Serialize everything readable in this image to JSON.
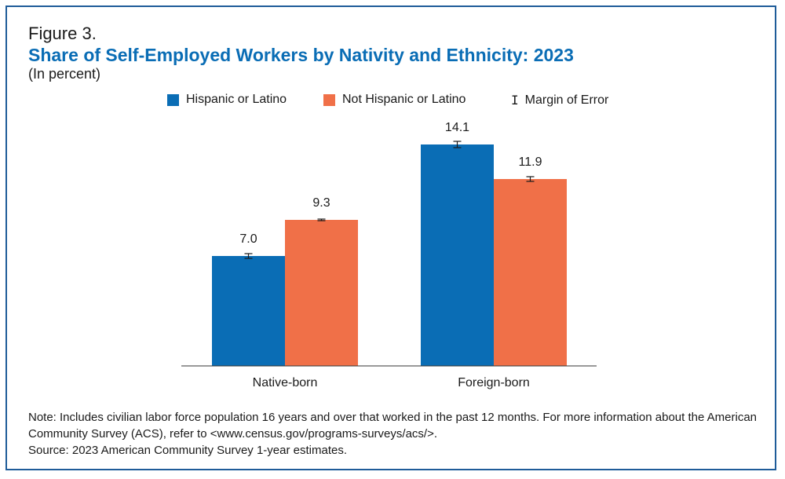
{
  "figure_label": "Figure 3.",
  "colors": {
    "hispanic": "#0a6db5",
    "not_hispanic": "#f07048",
    "title": "#0a6db5",
    "frame": "#1f5c99",
    "error_bar": "#1a1a1a",
    "axis": "#333333"
  },
  "legend": {
    "hispanic": "Hispanic or Latino",
    "not_hispanic": "Not Hispanic or Latino",
    "moe": "Margin of Error",
    "moe_icon": "error-bar-icon"
  },
  "chart_data": {
    "type": "bar",
    "title": "Share of Self-Employed Workers by Nativity and Ethnicity: 2023",
    "subtitle": "(In percent)",
    "categories": [
      "Native-born",
      "Foreign-born"
    ],
    "series": [
      {
        "name": "Hispanic or Latino",
        "values": [
          7.0,
          14.1
        ],
        "labels": [
          "7.0",
          "14.1"
        ],
        "moe": [
          0.15,
          0.2
        ]
      },
      {
        "name": "Not Hispanic or Latino",
        "values": [
          9.3,
          11.9
        ],
        "labels": [
          "9.3",
          "11.9"
        ],
        "moe": [
          0.05,
          0.15
        ]
      }
    ],
    "ylim": [
      0,
      16
    ],
    "grid": false,
    "legend_position": "top"
  },
  "notes": {
    "note": "Note: Includes civilian labor force population 16 years and over that worked in the past 12 months. For more information about the American Community Survey (ACS), refer to <www.census.gov/programs-surveys/acs/>.",
    "source": "Source: 2023 American Community Survey 1-year estimates."
  }
}
